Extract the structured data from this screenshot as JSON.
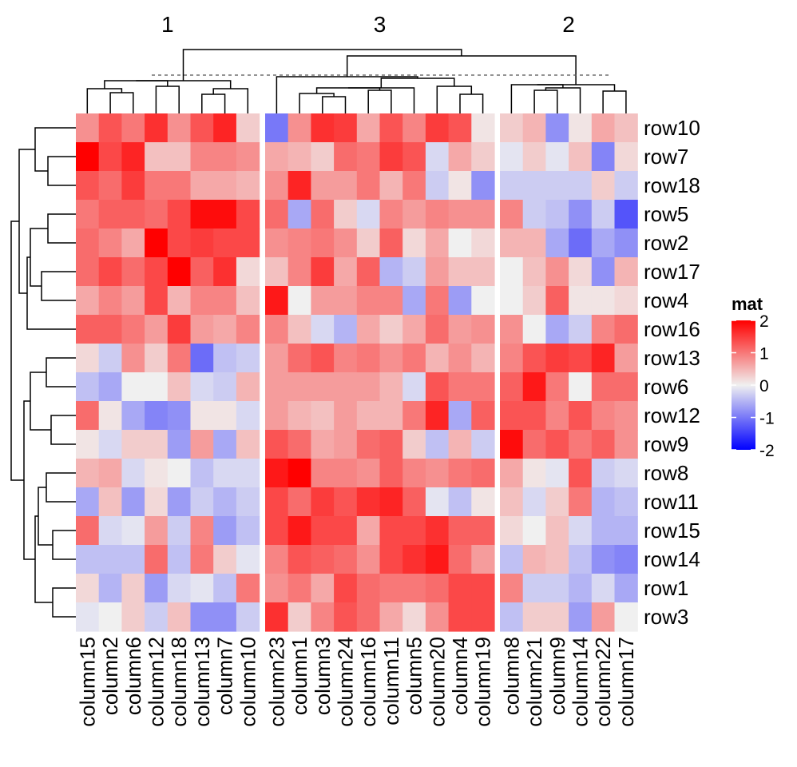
{
  "chart_data": {
    "type": "heatmap",
    "legend": {
      "title": "mat",
      "ticks": [
        2,
        1,
        0,
        -1,
        -2
      ],
      "tick_labels": [
        "2",
        "1",
        "0",
        "-1",
        "-2"
      ],
      "colors": {
        "low": "#0000ff",
        "mid": "#f0f0f0",
        "high": "#ff0000"
      },
      "placement": "right"
    },
    "row_labels": [
      "row10",
      "row7",
      "row18",
      "row5",
      "row2",
      "row17",
      "row4",
      "row16",
      "row13",
      "row6",
      "row12",
      "row9",
      "row8",
      "row11",
      "row15",
      "row14",
      "row1",
      "row3"
    ],
    "column_groups": [
      {
        "label": "1",
        "columns": [
          "column15",
          "column2",
          "column6",
          "column12",
          "column18",
          "column13",
          "column7",
          "column10"
        ]
      },
      {
        "label": "3",
        "columns": [
          "column23",
          "column1",
          "column3",
          "column24",
          "column16",
          "column11",
          "column5",
          "column20",
          "column4",
          "column19"
        ]
      },
      {
        "label": "2",
        "columns": [
          "column8",
          "column21",
          "column9",
          "column14",
          "column22",
          "column17"
        ]
      }
    ],
    "values": [
      [
        0.8,
        1.3,
        1.0,
        1.6,
        0.8,
        1.3,
        1.7,
        0.3,
        -1.0,
        0.8,
        1.6,
        1.5,
        0.6,
        1.3,
        0.9,
        1.5,
        1.3,
        0.1,
        0.3,
        0.5,
        -0.8,
        0.1,
        0.6,
        0.4
      ],
      [
        2.0,
        1.4,
        1.7,
        0.4,
        0.4,
        0.9,
        0.9,
        0.8,
        0.6,
        0.5,
        0.3,
        1.1,
        1.0,
        1.5,
        1.3,
        -0.2,
        0.6,
        0.3,
        -0.1,
        0.3,
        -0.1,
        0.4,
        -0.9,
        0.2
      ],
      [
        1.3,
        1.1,
        1.5,
        1.0,
        1.0,
        0.6,
        0.6,
        0.5,
        0.8,
        1.7,
        0.7,
        0.7,
        1.0,
        0.5,
        1.0,
        -0.3,
        0.1,
        -0.8,
        -0.3,
        -0.3,
        -0.3,
        -0.3,
        0.3,
        -0.3
      ],
      [
        1.0,
        1.2,
        1.2,
        1.1,
        1.4,
        1.9,
        1.9,
        1.4,
        1.1,
        -0.6,
        1.1,
        0.3,
        -0.2,
        0.9,
        0.7,
        0.9,
        0.8,
        0.8,
        0.9,
        -0.3,
        -0.4,
        -0.8,
        -0.3,
        -1.3
      ],
      [
        1.1,
        0.9,
        0.6,
        2.0,
        1.4,
        1.5,
        1.4,
        1.4,
        0.8,
        0.9,
        1.0,
        0.8,
        0.3,
        1.2,
        0.2,
        0.6,
        0.0,
        0.2,
        0.5,
        0.5,
        -0.6,
        -1.1,
        -0.6,
        -0.8
      ],
      [
        1.1,
        1.4,
        1.1,
        1.4,
        2.0,
        1.2,
        1.6,
        0.2,
        0.4,
        0.9,
        1.5,
        0.6,
        1.2,
        -0.5,
        -0.3,
        0.7,
        0.4,
        0.4,
        0.0,
        0.4,
        0.8,
        0.2,
        -0.8,
        0.5
      ],
      [
        0.6,
        0.9,
        0.7,
        1.4,
        0.5,
        0.9,
        0.9,
        0.4,
        1.8,
        0.0,
        0.7,
        0.7,
        0.9,
        0.9,
        -0.6,
        1.0,
        -0.7,
        0.0,
        0.0,
        0.3,
        1.2,
        0.1,
        0.1,
        0.2
      ],
      [
        1.2,
        1.2,
        1.0,
        0.7,
        1.5,
        0.7,
        0.6,
        0.9,
        0.9,
        0.4,
        -0.2,
        -0.5,
        0.6,
        0.3,
        0.6,
        1.1,
        0.7,
        0.8,
        0.8,
        0.0,
        -0.6,
        -0.3,
        0.9,
        1.1
      ],
      [
        0.2,
        -0.3,
        0.8,
        0.3,
        1.0,
        -1.1,
        -0.4,
        -0.3,
        0.7,
        1.1,
        1.3,
        0.9,
        1.0,
        0.8,
        1.0,
        0.5,
        0.8,
        0.5,
        0.9,
        1.3,
        1.5,
        1.4,
        1.7,
        0.7
      ],
      [
        -0.4,
        -0.6,
        0.0,
        0.0,
        0.4,
        -0.2,
        -0.3,
        0.5,
        0.7,
        0.7,
        0.7,
        0.7,
        0.7,
        0.5,
        -0.2,
        1.3,
        1.0,
        1.0,
        1.2,
        1.8,
        1.0,
        0.0,
        1.1,
        1.1
      ],
      [
        1.1,
        0.1,
        -0.6,
        -0.9,
        -0.8,
        0.1,
        0.1,
        -0.2,
        0.7,
        0.5,
        0.4,
        0.7,
        0.5,
        0.5,
        1.0,
        1.7,
        -0.6,
        1.2,
        1.3,
        1.3,
        0.9,
        1.3,
        0.9,
        0.8
      ],
      [
        0.1,
        -0.2,
        0.3,
        0.3,
        -0.7,
        0.7,
        -0.6,
        0.4,
        1.3,
        1.1,
        0.6,
        0.7,
        1.1,
        1.2,
        0.3,
        -0.4,
        0.5,
        -0.3,
        1.9,
        1.1,
        1.3,
        1.0,
        1.2,
        0.8
      ],
      [
        0.5,
        0.6,
        -0.2,
        0.1,
        0.0,
        -0.4,
        -0.2,
        -0.2,
        1.8,
        2.0,
        0.9,
        0.9,
        0.8,
        1.2,
        0.9,
        0.8,
        1.0,
        1.1,
        0.6,
        0.1,
        -0.1,
        1.3,
        -0.3,
        -0.2
      ],
      [
        -0.6,
        0.4,
        -0.7,
        0.2,
        -0.7,
        -0.3,
        -0.5,
        -0.3,
        1.4,
        1.1,
        1.5,
        1.3,
        1.6,
        1.7,
        1.2,
        -0.1,
        -0.4,
        0.1,
        0.4,
        -0.2,
        0.3,
        1.0,
        -0.5,
        -0.4
      ],
      [
        1.1,
        -0.2,
        -0.1,
        0.7,
        -0.3,
        0.9,
        -0.7,
        -0.4,
        1.4,
        1.8,
        1.4,
        1.4,
        0.6,
        1.4,
        1.4,
        1.6,
        1.2,
        1.2,
        0.2,
        0.0,
        0.4,
        -0.2,
        -0.5,
        -0.5
      ],
      [
        -0.4,
        -0.4,
        -0.4,
        1.1,
        -0.4,
        1.0,
        0.3,
        -0.1,
        0.9,
        1.3,
        1.2,
        1.1,
        0.8,
        1.4,
        1.6,
        1.8,
        1.1,
        0.7,
        -0.4,
        0.5,
        0.4,
        -0.4,
        -0.8,
        -0.9
      ],
      [
        0.2,
        -0.5,
        0.3,
        -0.7,
        -0.2,
        -0.1,
        -0.4,
        1.0,
        0.8,
        1.0,
        0.6,
        1.4,
        1.1,
        1.0,
        1.0,
        1.1,
        1.4,
        1.4,
        0.9,
        -0.3,
        -0.3,
        -0.5,
        -0.2,
        -0.6
      ],
      [
        -0.1,
        0.0,
        0.3,
        -0.3,
        0.4,
        -0.8,
        -0.8,
        -0.3,
        1.6,
        0.3,
        0.9,
        1.3,
        1.1,
        0.6,
        0.2,
        0.8,
        1.4,
        1.4,
        -0.4,
        0.3,
        0.3,
        -0.7,
        0.7,
        0.0
      ]
    ]
  }
}
